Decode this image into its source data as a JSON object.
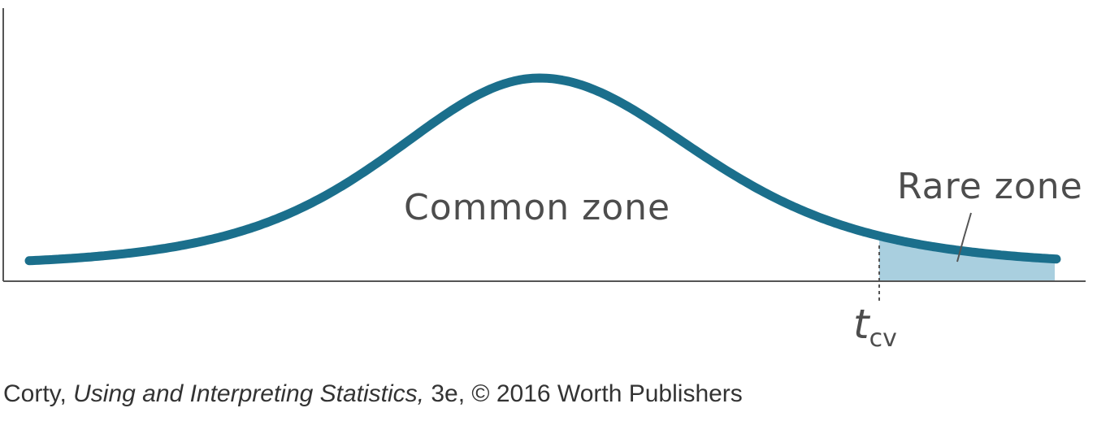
{
  "diagram": {
    "labels": {
      "common_zone": "Common zone",
      "rare_zone": "Rare zone",
      "critical_value_main": "t",
      "critical_value_sub": "cv"
    },
    "colors": {
      "curve": "#1b6f8c",
      "rare_fill": "#a9cfdf",
      "axis": "#555555",
      "text": "#4d4d4d"
    }
  },
  "credit": {
    "author": "Corty,",
    "book_title": "Using and Interpreting Statistics,",
    "edition_rest": "3e, © 2016 Worth Publishers"
  }
}
